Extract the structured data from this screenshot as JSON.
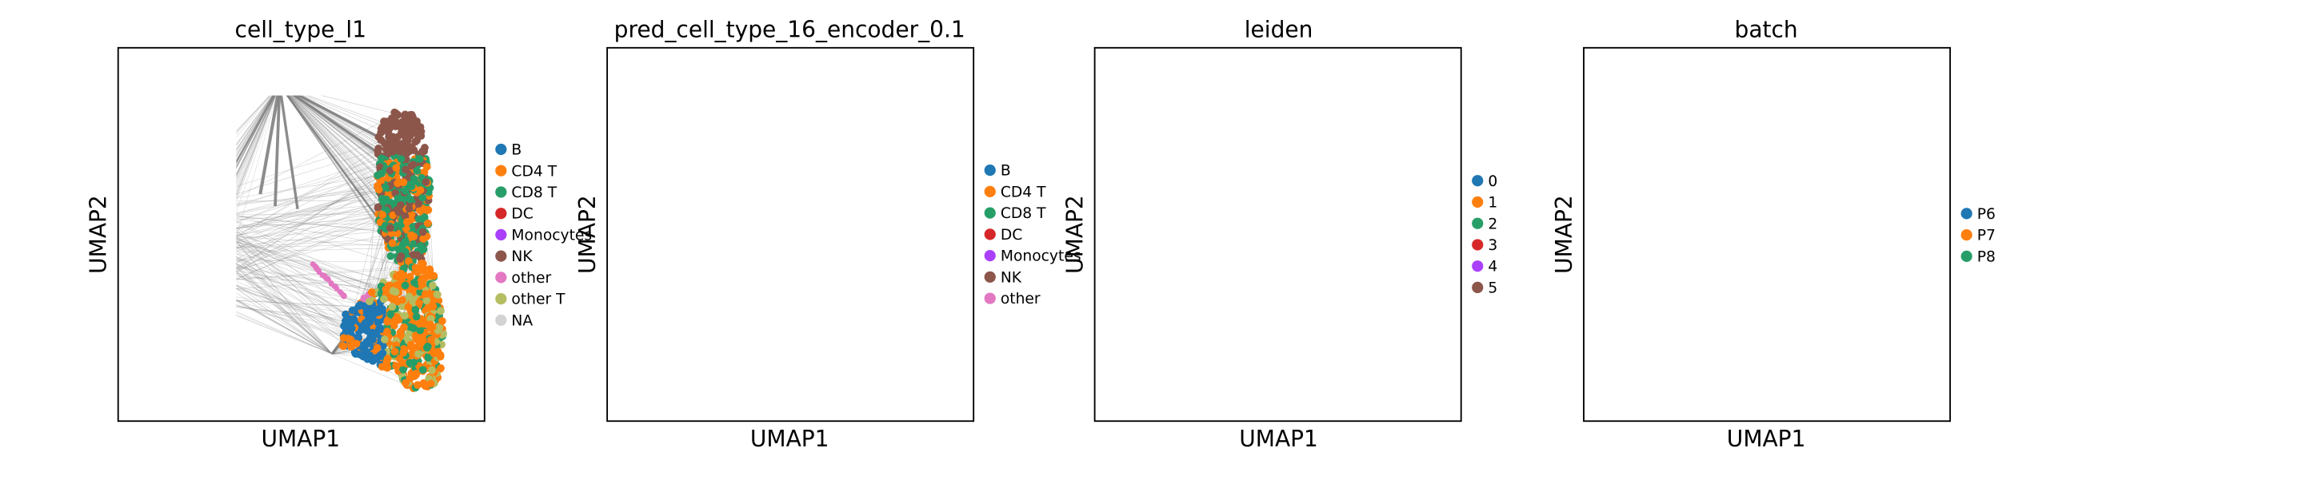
{
  "chart_data": [
    {
      "type": "scatter",
      "title": "cell_type_l1",
      "xlabel": "UMAP1",
      "ylabel": "UMAP2",
      "legend": [
        "B",
        "CD4 T",
        "CD8 T",
        "DC",
        "Monocytes",
        "NK",
        "other",
        "other T",
        "NA"
      ],
      "colors": [
        "#1f77b4",
        "#ff7f0e",
        "#279e68",
        "#d62728",
        "#aa40fc",
        "#8c564b",
        "#e377c2",
        "#b5bd61",
        "#d3d3d3"
      ],
      "legend_position": "right",
      "grid": false
    },
    {
      "type": "scatter",
      "title": "pred_cell_type_16_encoder_0.1",
      "xlabel": "UMAP1",
      "ylabel": "UMAP2",
      "legend": [
        "B",
        "CD4 T",
        "CD8 T",
        "DC",
        "Monocytes",
        "NK",
        "other"
      ],
      "colors": [
        "#1f77b4",
        "#ff7f0e",
        "#279e68",
        "#d62728",
        "#aa40fc",
        "#8c564b",
        "#e377c2"
      ],
      "legend_position": "right",
      "grid": false
    },
    {
      "type": "scatter",
      "title": "leiden",
      "xlabel": "UMAP1",
      "ylabel": "UMAP2",
      "legend": [
        "0",
        "1",
        "2",
        "3",
        "4",
        "5"
      ],
      "colors": [
        "#1f77b4",
        "#ff7f0e",
        "#279e68",
        "#d62728",
        "#aa40fc",
        "#8c564b"
      ],
      "legend_position": "right",
      "grid": false
    },
    {
      "type": "scatter",
      "title": "batch",
      "xlabel": "UMAP1",
      "ylabel": "UMAP2",
      "legend": [
        "P6",
        "P7",
        "P8"
      ],
      "colors": [
        "#1f77b4",
        "#ff7f0e",
        "#279e68"
      ],
      "legend_position": "right",
      "grid": false
    }
  ]
}
